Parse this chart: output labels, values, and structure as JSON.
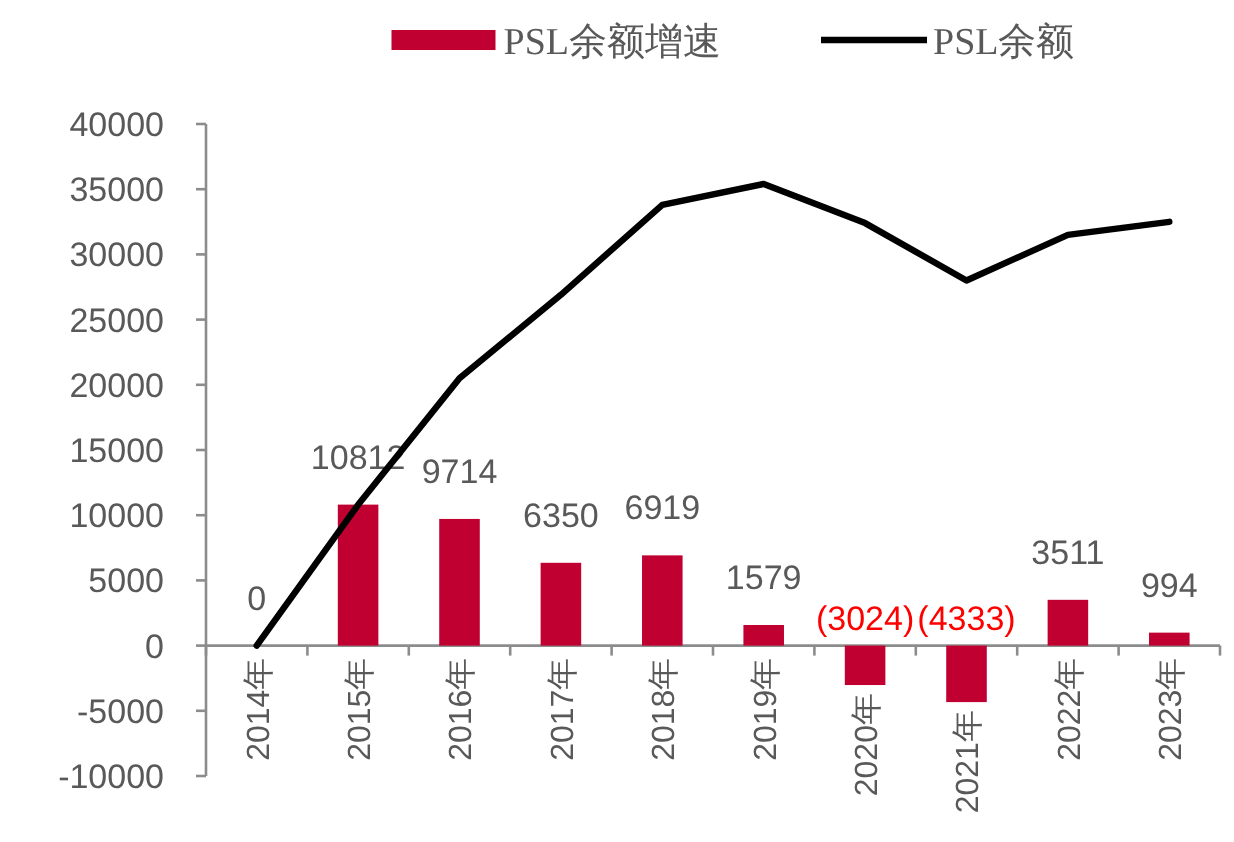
{
  "chart_data": {
    "type": "bar",
    "categories": [
      "2014年",
      "2015年",
      "2016年",
      "2017年",
      "2018年",
      "2019年",
      "2020年",
      "2021年",
      "2022年",
      "2023年"
    ],
    "series": [
      {
        "name": "PSL余额增速",
        "color": "#c00030",
        "values": [
          0,
          10812,
          9714,
          6350,
          6919,
          1579,
          -3024,
          -4333,
          3511,
          994
        ],
        "value_labels": [
          "0",
          "10812",
          "9714",
          "6350",
          "6919",
          "1579",
          "(3024)",
          "(4333)",
          "3511",
          "994"
        ]
      },
      {
        "name": "PSL余额",
        "type": "line",
        "color": "#000000",
        "values": [
          0,
          10800,
          20500,
          26900,
          33800,
          35400,
          32400,
          28000,
          31500,
          32500
        ]
      }
    ],
    "ylim": [
      -10000,
      40000
    ],
    "yticks": [
      -10000,
      -5000,
      0,
      5000,
      10000,
      15000,
      20000,
      25000,
      30000,
      35000,
      40000
    ],
    "legend": "top"
  }
}
